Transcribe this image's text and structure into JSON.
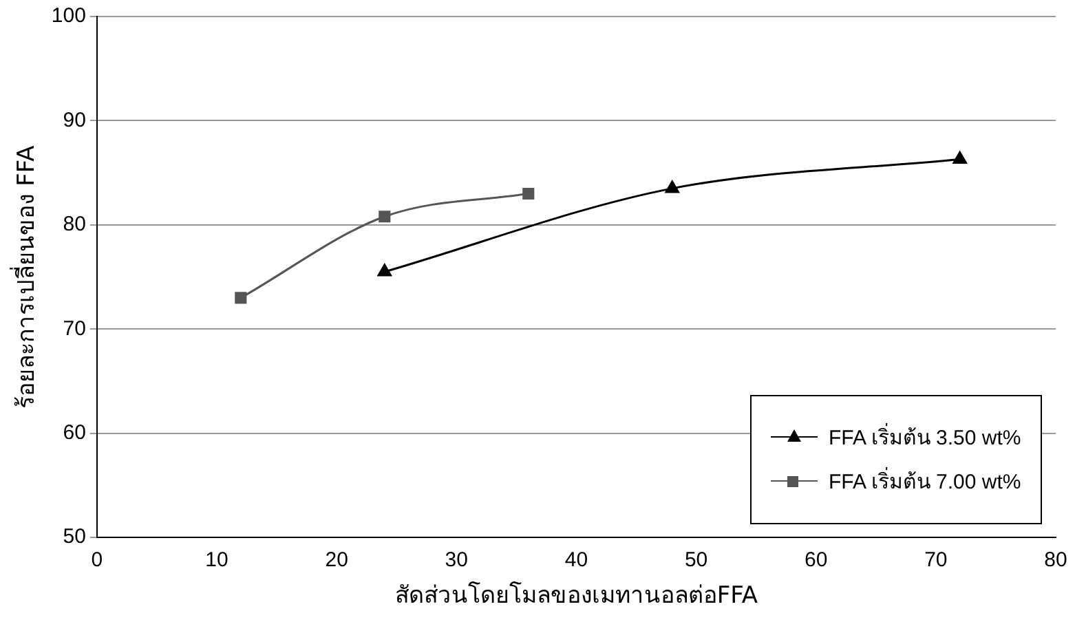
{
  "chart_data": {
    "type": "line",
    "xlabel": "สัดส่วนโดยโมลของเมทานอลต่อFFA",
    "ylabel": "ร้อยละการเปลี่ยนของ FFA",
    "xlim": [
      0,
      80
    ],
    "xticks": [
      0,
      10,
      20,
      30,
      40,
      50,
      60,
      70,
      80
    ],
    "ylim": [
      50,
      100
    ],
    "yticks": [
      50,
      60,
      70,
      80,
      90,
      100
    ],
    "grid": "y",
    "legend": "bottom right",
    "series": [
      {
        "name": "FFA เริ่มต้น 3.50 wt%",
        "color": "#000000",
        "marker": "triangle",
        "line_style": "solid",
        "x": [
          24,
          48,
          72
        ],
        "values": [
          75.5,
          83.5,
          86.3
        ]
      },
      {
        "name": "FFA เริ่มต้น 7.00 wt%",
        "color": "#555555",
        "marker": "square",
        "line_style": "solid",
        "x": [
          12,
          24,
          36
        ],
        "values": [
          73,
          80.8,
          83
        ]
      }
    ]
  }
}
